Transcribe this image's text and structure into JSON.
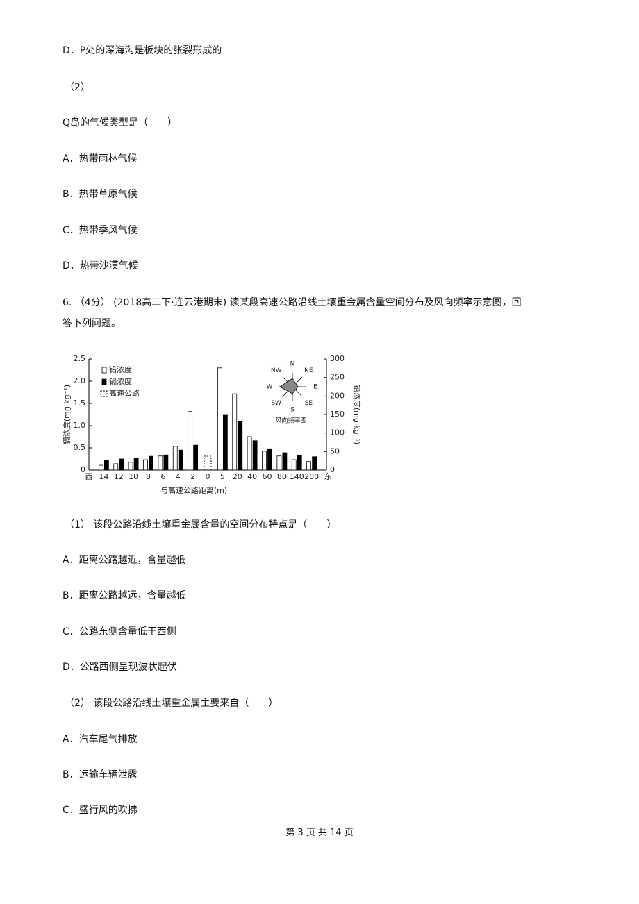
{
  "lines": [
    "D．P处的深海沟是板块的张裂形成的",
    "（2）",
    "Q岛的气候类型是（　　）",
    "A．热带雨林气候",
    "B．热带草原气候",
    "C．热带季风气候",
    "D．热带沙漠气候",
    "6. （4分） (2018高二下·连云港期末) 读某段高速公路沿线土壤重金属含量空间分布及风向频率示意图，回",
    "答下列问题。",
    "（1） 该段公路沿线土壤重金属含量的空间分布特点是（　　）",
    "A．距离公路越近，含量越低",
    "B．距离公路越远，含量越低",
    "C．公路东侧含量低于西侧",
    "D．公路西侧呈现波状起伏",
    "（2） 该段公路沿线土壤重金属主要来自（　　）",
    "A．汽车尾气排放",
    "B．运输车辆泄露",
    "C．盛行风的吹拂"
  ],
  "footer": "第 3 页 共 14 页",
  "chart_data": {
    "type": "bar",
    "categories": [
      "14",
      "12",
      "10",
      "8",
      "6",
      "4",
      "2",
      "0",
      "5",
      "20",
      "40",
      "60",
      "80",
      "140",
      "200"
    ],
    "x_start_label": "西",
    "x_end_label": "东",
    "x_label": "与高速公路距离(m)",
    "y_label": "镉浓度(mg·kg⁻¹)",
    "y2_label": "铅浓度(mg·kg⁻¹)",
    "series": [
      {
        "name": "铅浓度",
        "color": "#ffffff",
        "axis": "y2",
        "values": [
          13,
          17,
          21,
          28,
          38,
          64,
          158,
          null,
          276,
          206,
          90,
          51,
          38,
          28,
          23
        ]
      },
      {
        "name": "镉浓度",
        "color": "#000000",
        "values": [
          0.22,
          0.25,
          0.27,
          0.31,
          0.34,
          0.45,
          0.56,
          null,
          1.25,
          1.09,
          0.66,
          0.48,
          0.39,
          0.33,
          0.3
        ]
      }
    ],
    "highway_label": "高速公路",
    "ylim": [
      0,
      2.5
    ],
    "yticks": [
      0,
      0.5,
      {
        "value": 1,
        "label": "1.0"
      },
      1.5,
      {
        "value": 2,
        "label": "2.0"
      },
      2.5
    ],
    "y2lim": [
      0,
      300
    ],
    "y2ticks": [
      0,
      50,
      100,
      150,
      200,
      250,
      300
    ],
    "wind_rose": {
      "title": "风向频率图",
      "directions": [
        "N",
        "NE",
        "E",
        "SE",
        "S",
        "SW",
        "W",
        "NW"
      ]
    }
  }
}
